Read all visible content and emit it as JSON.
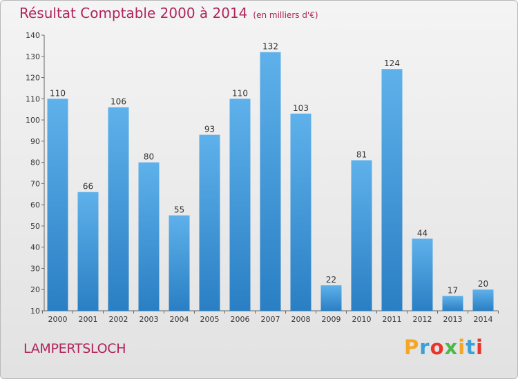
{
  "title": "Résultat Comptable 2000 à 2014",
  "unit_label": "(en milliers d'€)",
  "commune": "LAMPERTSLOCH",
  "brand": {
    "name": "Proxiti",
    "letters": [
      {
        "char": "P",
        "color": "#f5a623"
      },
      {
        "char": "r",
        "color": "#3aa0d8"
      },
      {
        "char": "o",
        "color": "#e8352b"
      },
      {
        "char": "x",
        "color": "#4db848"
      },
      {
        "char": "i",
        "color": "#f5a623"
      },
      {
        "char": "t",
        "color": "#3aa0d8"
      },
      {
        "char": "i",
        "color": "#e8352b"
      }
    ]
  },
  "colors": {
    "bar_light": "#5eb1ea",
    "bar_dark": "#2a7fc4",
    "title": "#b0245a"
  },
  "chart_data": {
    "type": "bar",
    "categories": [
      "2000",
      "2001",
      "2002",
      "2003",
      "2004",
      "2005",
      "2006",
      "2007",
      "2008",
      "2009",
      "2010",
      "2011",
      "2012",
      "2013",
      "2014"
    ],
    "values": [
      110,
      66,
      106,
      80,
      55,
      93,
      110,
      132,
      103,
      22,
      81,
      124,
      44,
      17,
      20
    ],
    "ylim": [
      10,
      140
    ],
    "yticks": [
      10,
      20,
      30,
      40,
      50,
      60,
      70,
      80,
      90,
      100,
      110,
      120,
      130,
      140
    ],
    "grid": false,
    "xlabel": "",
    "ylabel": ""
  }
}
